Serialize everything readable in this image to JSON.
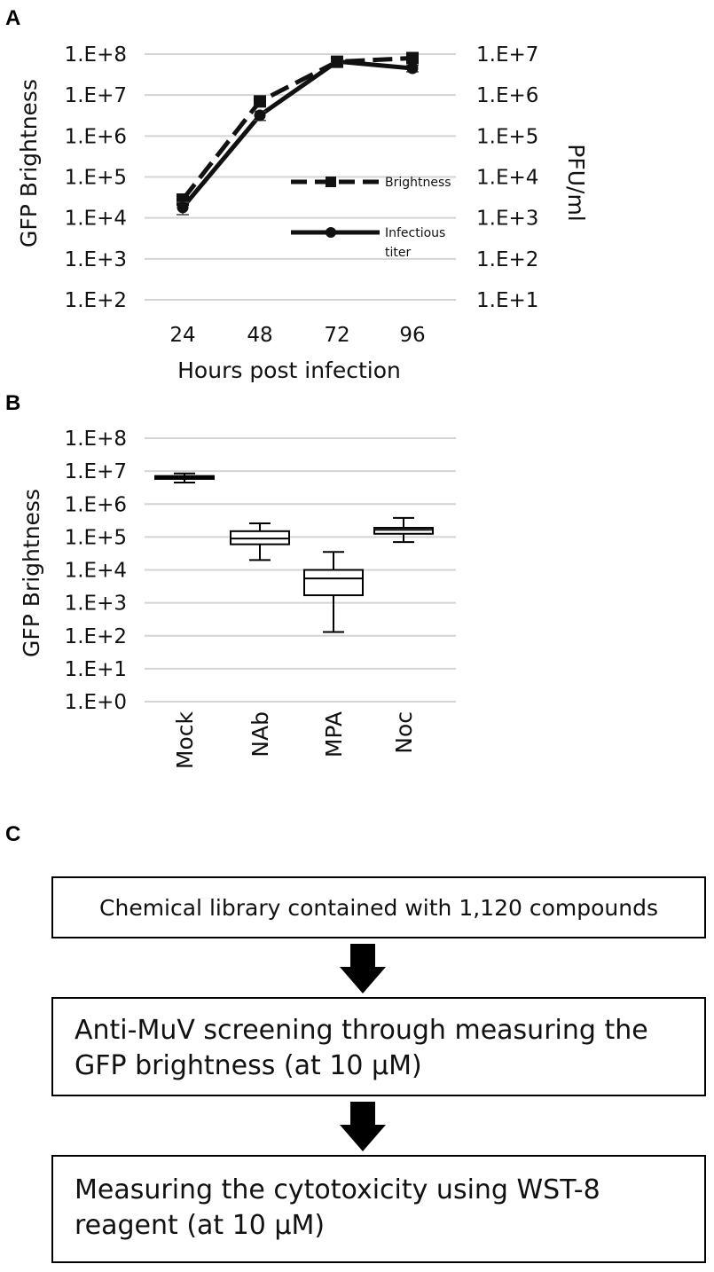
{
  "panels": {
    "a": "A",
    "b": "B",
    "c": "C"
  },
  "chart_data": [
    {
      "type": "line",
      "ylabel": "GFP Brightness",
      "y2label": "PFU/ml",
      "xlabel": "Hours post infection",
      "x": [
        "24",
        "48",
        "72",
        "96"
      ],
      "y_scale": "log",
      "ylim": [
        100,
        100000000
      ],
      "y2lim": [
        10,
        10000000
      ],
      "y_ticks": [
        "1.E+8",
        "1.E+7",
        "1.E+6",
        "1.E+5",
        "1.E+4",
        "1.E+3",
        "1.E+2"
      ],
      "y2_ticks": [
        "1.E+7",
        "1.E+6",
        "1.E+5",
        "1.E+4",
        "1.E+3",
        "1.E+2",
        "1.E+1"
      ],
      "grid": true,
      "legend_position": "right-middle",
      "series": [
        {
          "name": "Brightness",
          "axis": "left",
          "style": "dashed",
          "marker": "square",
          "values": [
            28000,
            7000000,
            65000000,
            80000000
          ],
          "err": [
            5000,
            800000,
            5000000,
            12000000
          ]
        },
        {
          "name": "Infectious titer",
          "axis": "right",
          "style": "solid",
          "marker": "circle",
          "values": [
            1800,
            320000,
            6600000,
            4500000
          ],
          "err": [
            600,
            80000,
            500000,
            800000
          ]
        }
      ]
    },
    {
      "type": "box",
      "ylabel": "GFP Brightness",
      "y_scale": "log",
      "ylim": [
        1,
        100000000
      ],
      "y_ticks": [
        "1.E+8",
        "1.E+7",
        "1.E+6",
        "1.E+5",
        "1.E+4",
        "1.E+3",
        "1.E+2",
        "1.E+1",
        "1.E+0"
      ],
      "grid": true,
      "categories": [
        "Mock",
        "NAb",
        "MPA",
        "Noc"
      ],
      "boxes": [
        {
          "min": 4500000,
          "q1": 5800000,
          "median": 6500000,
          "q3": 7100000,
          "max": 8500000
        },
        {
          "min": 20000,
          "q1": 60000,
          "median": 90000,
          "q3": 150000,
          "max": 260000
        },
        {
          "min": 130,
          "q1": 1700,
          "median": 5500,
          "q3": 10000,
          "max": 35000
        },
        {
          "min": 70000,
          "q1": 125000,
          "median": 165000,
          "q3": 190000,
          "max": 380000
        }
      ]
    }
  ],
  "flow": {
    "steps": [
      {
        "text": "Chemical library contained with 1,120 compounds"
      },
      {
        "text": "Anti-MuV screening through measuring the GFP brightness (at 10 μM)"
      },
      {
        "text": "Measuring the cytotoxicity using WST-8 reagent (at 10 μM)"
      }
    ]
  }
}
